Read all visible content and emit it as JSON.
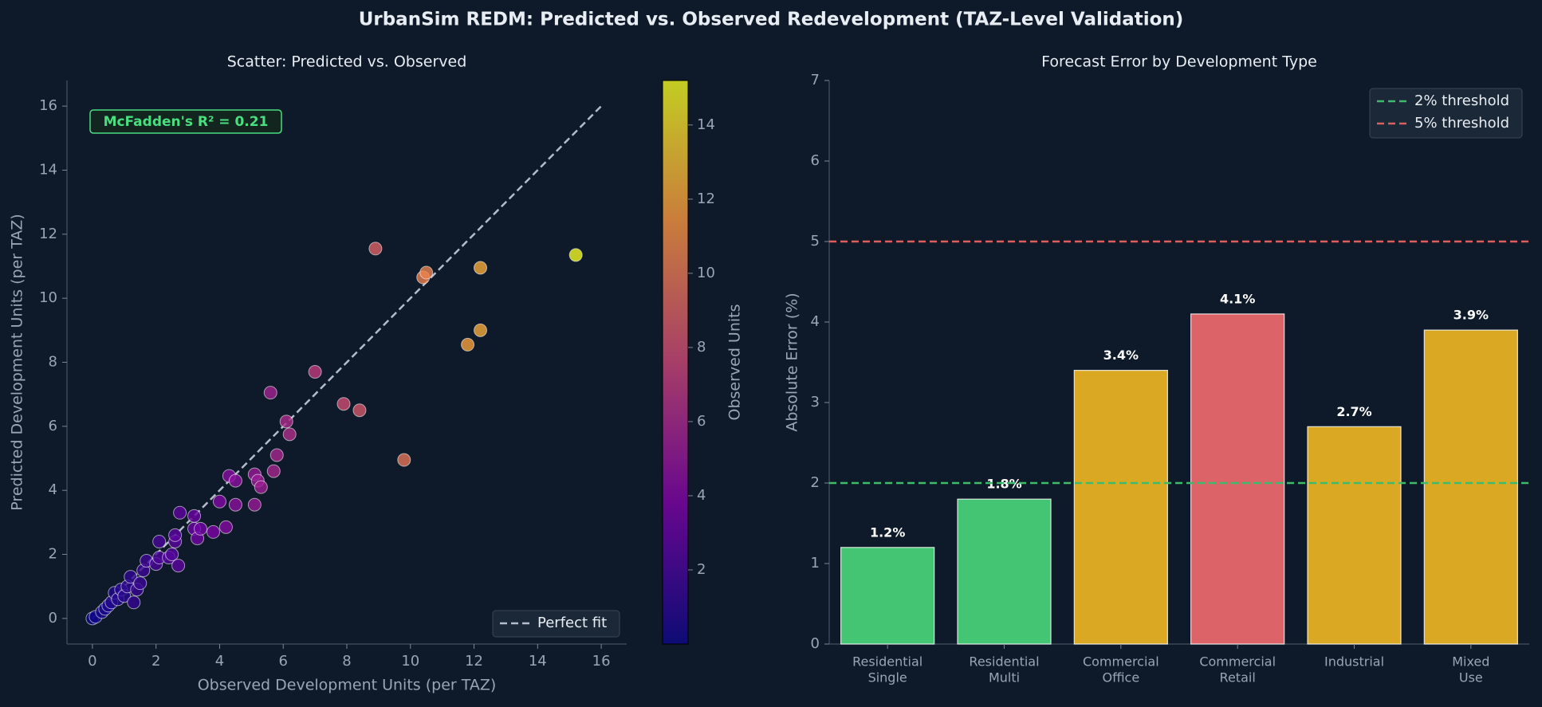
{
  "title": "UrbanSim REDM: Predicted vs. Observed Redevelopment (TAZ-Level Validation)",
  "chart_data": [
    {
      "type": "scatter",
      "title": "Scatter: Predicted vs. Observed",
      "x_label": "Observed Development Units (per TAZ)",
      "y_label": "Predicted Development Units (per TAZ)",
      "x": [
        0,
        0.1,
        0.3,
        0.4,
        0.5,
        0.6,
        0.7,
        0.8,
        0.9,
        1.0,
        1.1,
        1.2,
        1.3,
        1.4,
        1.5,
        1.6,
        1.7,
        2.0,
        2.1,
        2.1,
        2.4,
        2.5,
        2.6,
        2.6,
        2.7,
        2.75,
        3.2,
        3.2,
        3.3,
        3.4,
        3.8,
        4.0,
        4.2,
        4.3,
        4.5,
        4.5,
        5.1,
        5.1,
        5.2,
        5.3,
        5.7,
        5.6,
        5.8,
        6.1,
        6.2,
        7.0,
        7.9,
        8.4,
        8.9,
        9.8,
        10.4,
        10.5,
        11.8,
        12.2,
        12.2,
        15.2
      ],
      "values": [
        0,
        0.05,
        0.2,
        0.3,
        0.4,
        0.5,
        0.8,
        0.6,
        0.9,
        0.7,
        1.0,
        1.3,
        0.5,
        0.9,
        1.1,
        1.5,
        1.8,
        1.7,
        1.9,
        2.4,
        1.9,
        2.0,
        2.4,
        2.6,
        1.65,
        3.3,
        3.2,
        2.8,
        2.5,
        2.8,
        2.7,
        3.65,
        2.85,
        4.45,
        4.3,
        3.55,
        3.55,
        4.5,
        4.3,
        4.1,
        4.6,
        7.05,
        5.1,
        6.15,
        5.75,
        7.7,
        6.7,
        6.5,
        11.55,
        4.95,
        10.65,
        10.8,
        8.55,
        9.0,
        10.95,
        11.35
      ],
      "colormap": "plasma",
      "xlim": [
        -0.8,
        16.8
      ],
      "xticks": [
        0,
        2,
        4,
        6,
        8,
        10,
        12,
        14,
        16
      ],
      "ylim": [
        -0.8,
        16.8
      ],
      "yticks": [
        0,
        2,
        4,
        6,
        8,
        10,
        12,
        14,
        16
      ],
      "colorbar": {
        "label": "Observed Units",
        "lim": [
          0,
          15.2
        ],
        "ticks": [
          2,
          4,
          6,
          8,
          10,
          12,
          14
        ]
      },
      "annotation": "McFadden's R² = 0.21",
      "reference_line": {
        "name": "Perfect fit",
        "x": [
          0,
          16
        ],
        "y": [
          0,
          16
        ],
        "color": "#b3bcc8"
      },
      "legend": "lower right"
    },
    {
      "type": "bar",
      "title": "Forecast Error by Development Type",
      "y_label": "Absolute Error (%)",
      "categories": [
        [
          "Residential",
          "Single"
        ],
        [
          "Residential",
          "Multi"
        ],
        [
          "Commercial",
          "Office"
        ],
        [
          "Commercial",
          "Retail"
        ],
        [
          "Industrial"
        ],
        [
          "Mixed",
          "Use"
        ]
      ],
      "values": [
        1.2,
        1.8,
        3.4,
        4.1,
        2.7,
        3.9
      ],
      "value_labels": [
        "1.2%",
        "1.8%",
        "3.4%",
        "4.1%",
        "2.7%",
        "3.9%"
      ],
      "colors": [
        "#44c574",
        "#44c574",
        "#dba823",
        "#dc6367",
        "#dba823",
        "#dba823"
      ],
      "ylim": [
        0,
        7
      ],
      "yticks": [
        0,
        1,
        2,
        3,
        4,
        5,
        6,
        7
      ],
      "thresholds": [
        {
          "name": "2% threshold",
          "value": 2,
          "color": "#3dbb6a"
        },
        {
          "name": "5% threshold",
          "value": 5,
          "color": "#d9605f"
        }
      ],
      "legend": "upper right"
    }
  ]
}
